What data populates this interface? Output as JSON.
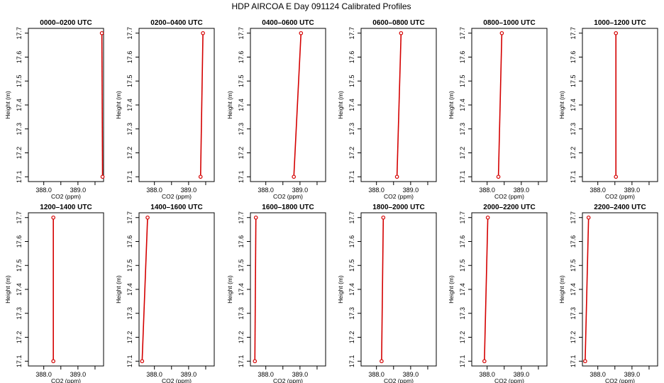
{
  "title": "HDP AIRCOA E  Day 091124  Calibrated Profiles",
  "chart_data": {
    "type": "line",
    "title": "HDP AIRCOA E  Day 091124  Calibrated Profiles",
    "xlabel": "CO2 (ppm)",
    "ylabel": "Height (m)",
    "xlim": [
      387.55,
      389.75
    ],
    "ylim": [
      17.08,
      17.72
    ],
    "xticks": [
      "388.0",
      "389.0"
    ],
    "yticks": [
      "17.1",
      "17.2",
      "17.3",
      "17.4",
      "17.5",
      "17.6",
      "17.7"
    ],
    "grid": false,
    "series_color": "#d40000",
    "panels": [
      {
        "title": "0000–0200 UTC",
        "heights": [
          17.1,
          17.7
        ],
        "co2": [
          389.72,
          389.7
        ]
      },
      {
        "title": "0200–0400 UTC",
        "heights": [
          17.1,
          17.7
        ],
        "co2": [
          389.35,
          389.42
        ]
      },
      {
        "title": "0400–0600 UTC",
        "heights": [
          17.1,
          17.7
        ],
        "co2": [
          388.82,
          389.03
        ]
      },
      {
        "title": "0600–0800 UTC",
        "heights": [
          17.1,
          17.7
        ],
        "co2": [
          388.6,
          388.72
        ]
      },
      {
        "title": "0800–1000 UTC",
        "heights": [
          17.1,
          17.7
        ],
        "co2": [
          388.33,
          388.43
        ]
      },
      {
        "title": "1000–1200 UTC",
        "heights": [
          17.1,
          17.7
        ],
        "co2": [
          388.53,
          388.53
        ]
      },
      {
        "title": "1200–1400 UTC",
        "heights": [
          17.1,
          17.7
        ],
        "co2": [
          388.28,
          388.28
        ]
      },
      {
        "title": "1400–1600 UTC",
        "heights": [
          17.1,
          17.7
        ],
        "co2": [
          387.64,
          387.8
        ]
      },
      {
        "title": "1600–1800 UTC",
        "heights": [
          17.1,
          17.7
        ],
        "co2": [
          387.68,
          387.71
        ]
      },
      {
        "title": "1800–2000 UTC",
        "heights": [
          17.1,
          17.7
        ],
        "co2": [
          388.15,
          388.2
        ]
      },
      {
        "title": "2000–2200 UTC",
        "heights": [
          17.1,
          17.7
        ],
        "co2": [
          387.92,
          388.02
        ]
      },
      {
        "title": "2200–2400 UTC",
        "heights": [
          17.1,
          17.7
        ],
        "co2": [
          387.63,
          387.73
        ]
      }
    ]
  }
}
